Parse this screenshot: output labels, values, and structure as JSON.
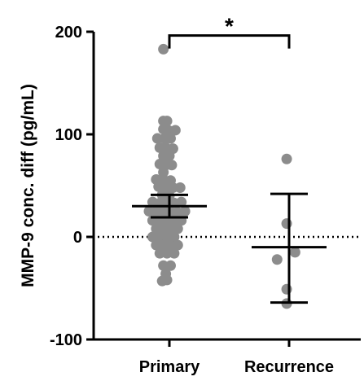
{
  "chart_data": {
    "type": "scatter",
    "title": "",
    "xlabel": "",
    "ylabel": "MMP-9 conc. diff (pg/mL)",
    "ylim": [
      -100,
      200
    ],
    "yticks": [
      -100,
      0,
      100,
      200
    ],
    "ytick_labels": [
      "-100",
      "0",
      "100",
      "200"
    ],
    "categories": [
      "Primary",
      "Recurrence"
    ],
    "reference_line": 0,
    "significance": {
      "label": "*",
      "between": [
        "Primary",
        "Recurrence"
      ],
      "y": 209
    },
    "point_color": "#8c8c8c",
    "series": [
      {
        "category": "Primary",
        "mean": 30,
        "ci_low": 19,
        "ci_high": 41,
        "points": [
          {
            "x": -0.05,
            "y": 183
          },
          {
            "x": -0.05,
            "y": 113
          },
          {
            "x": -0.02,
            "y": 113
          },
          {
            "x": -0.05,
            "y": 105
          },
          {
            "x": -0.01,
            "y": 104
          },
          {
            "x": 0.05,
            "y": 104
          },
          {
            "x": -0.1,
            "y": 96
          },
          {
            "x": -0.04,
            "y": 96
          },
          {
            "x": 0.01,
            "y": 96
          },
          {
            "x": -0.08,
            "y": 87
          },
          {
            "x": -0.03,
            "y": 87
          },
          {
            "x": 0.03,
            "y": 86
          },
          {
            "x": -0.05,
            "y": 79
          },
          {
            "x": 0.0,
            "y": 79
          },
          {
            "x": -0.08,
            "y": 71
          },
          {
            "x": -0.03,
            "y": 70
          },
          {
            "x": 0.02,
            "y": 70
          },
          {
            "x": -0.05,
            "y": 63
          },
          {
            "x": -0.11,
            "y": 56
          },
          {
            "x": -0.05,
            "y": 56
          },
          {
            "x": 0.01,
            "y": 55
          },
          {
            "x": -0.09,
            "y": 49
          },
          {
            "x": -0.03,
            "y": 49
          },
          {
            "x": 0.03,
            "y": 48
          },
          {
            "x": 0.09,
            "y": 48
          },
          {
            "x": -0.06,
            "y": 41
          },
          {
            "x": 0.0,
            "y": 40
          },
          {
            "x": -0.14,
            "y": 34
          },
          {
            "x": -0.08,
            "y": 33
          },
          {
            "x": -0.02,
            "y": 33
          },
          {
            "x": 0.04,
            "y": 33
          },
          {
            "x": 0.1,
            "y": 34
          },
          {
            "x": -0.17,
            "y": 25
          },
          {
            "x": -0.11,
            "y": 25
          },
          {
            "x": -0.05,
            "y": 25
          },
          {
            "x": 0.01,
            "y": 24
          },
          {
            "x": 0.07,
            "y": 24
          },
          {
            "x": 0.13,
            "y": 25
          },
          {
            "x": -0.14,
            "y": 16
          },
          {
            "x": -0.08,
            "y": 16
          },
          {
            "x": -0.02,
            "y": 16
          },
          {
            "x": 0.04,
            "y": 16
          },
          {
            "x": 0.1,
            "y": 16
          },
          {
            "x": -0.11,
            "y": 8
          },
          {
            "x": -0.05,
            "y": 8
          },
          {
            "x": 0.01,
            "y": 8
          },
          {
            "x": 0.07,
            "y": 8
          },
          {
            "x": -0.14,
            "y": 0
          },
          {
            "x": -0.08,
            "y": 0
          },
          {
            "x": -0.02,
            "y": 0
          },
          {
            "x": 0.04,
            "y": 0
          },
          {
            "x": -0.11,
            "y": -8
          },
          {
            "x": -0.05,
            "y": -8
          },
          {
            "x": 0.01,
            "y": -8
          },
          {
            "x": 0.07,
            "y": -8
          },
          {
            "x": -0.08,
            "y": -16
          },
          {
            "x": -0.02,
            "y": -16
          },
          {
            "x": 0.04,
            "y": -16
          },
          {
            "x": -0.05,
            "y": -28
          },
          {
            "x": 0.01,
            "y": -28
          },
          {
            "x": -0.03,
            "y": -36
          },
          {
            "x": -0.06,
            "y": -43
          },
          {
            "x": -0.02,
            "y": -42
          }
        ]
      },
      {
        "category": "Recurrence",
        "mean": -10,
        "ci_low": -64,
        "ci_high": 42,
        "points": [
          {
            "x": -0.02,
            "y": 76
          },
          {
            "x": -0.02,
            "y": 13
          },
          {
            "x": 0.05,
            "y": -15
          },
          {
            "x": -0.1,
            "y": -22
          },
          {
            "x": -0.02,
            "y": -51
          },
          {
            "x": -0.02,
            "y": -65
          }
        ]
      }
    ]
  }
}
